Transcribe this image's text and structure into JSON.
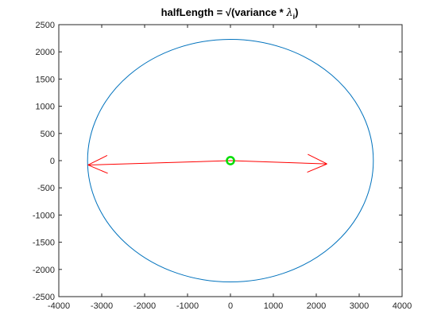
{
  "chart_data": {
    "type": "line",
    "title": "halfLength = √(variance * λᵢ)",
    "title_parts": {
      "prefix": "halfLength = ",
      "sqrt": "√",
      "open": "(variance * ",
      "lambda": "λ",
      "subscript": "i",
      "close": ")"
    },
    "xlabel": "",
    "ylabel": "",
    "xlim": [
      -4000,
      4000
    ],
    "ylim": [
      -2500,
      2500
    ],
    "x_ticks": [
      -4000,
      -3000,
      -2000,
      -1000,
      0,
      1000,
      2000,
      3000,
      4000
    ],
    "y_ticks": [
      -2500,
      -2000,
      -1500,
      -1000,
      -500,
      0,
      500,
      1000,
      1500,
      2000,
      2500
    ],
    "grid": false,
    "ellipse": {
      "center": [
        0,
        0
      ],
      "semi_axis_x": 3330,
      "semi_axis_y": 2230,
      "color": "#0072BD"
    },
    "arrows": [
      {
        "from": [
          0,
          0
        ],
        "to": [
          -3320,
          -80
        ],
        "color": "#FF0000"
      },
      {
        "from": [
          0,
          0
        ],
        "to": [
          2250,
          -60
        ],
        "color": "#FF0000"
      }
    ],
    "center_marker": {
      "x": 0,
      "y": 0,
      "radius": 85,
      "color": "#00DD00"
    },
    "colors": {
      "ellipse": "#0072BD",
      "arrows": "#FF0000",
      "center": "#00DD00",
      "axes": "#262626"
    }
  }
}
